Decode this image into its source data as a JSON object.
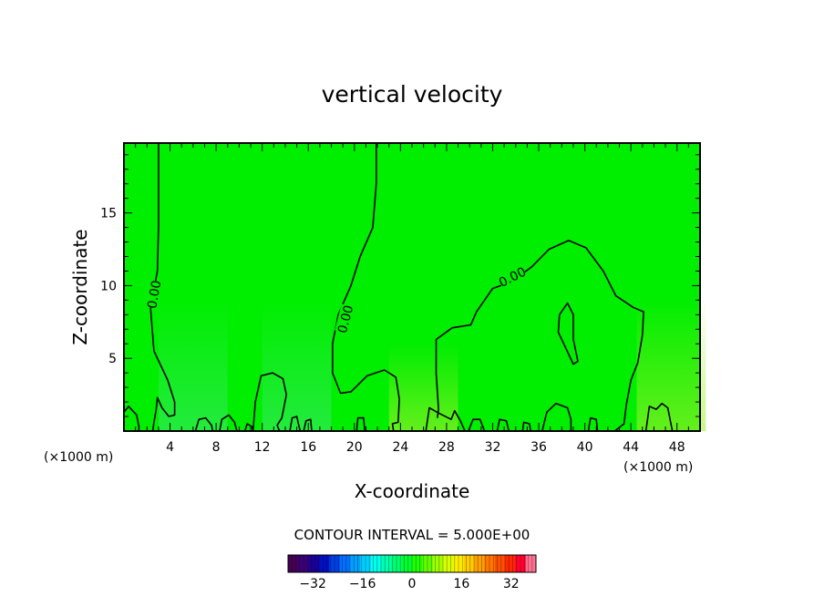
{
  "chart_data": {
    "type": "heatmap",
    "title": "vertical velocity",
    "xlabel": "X-coordinate",
    "ylabel": "Z-coordinate",
    "x_unit_left": "(×1000 m)",
    "x_unit_right": "(×1000 m)",
    "xlim": [
      0,
      50
    ],
    "ylim": [
      0,
      19.8
    ],
    "xticks": [
      4,
      8,
      12,
      16,
      20,
      24,
      28,
      32,
      36,
      40,
      44,
      48
    ],
    "yticks": [
      5,
      10,
      15
    ],
    "contour_label": "0.00",
    "contour_interval_text": "CONTOUR INTERVAL = 5.000E+00",
    "colorbar": {
      "range": [
        -40,
        40
      ],
      "ticks": [
        -32,
        -16,
        0,
        16,
        32
      ],
      "colors": [
        "#440055",
        "#3a0077",
        "#1a0099",
        "#0010c0",
        "#0040e0",
        "#0070ff",
        "#00a0ff",
        "#00d0ff",
        "#00ffee",
        "#00ffb0",
        "#00ff70",
        "#00ff30",
        "#20ff00",
        "#60ff00",
        "#a0ff00",
        "#d8ff00",
        "#ffee00",
        "#ffcc00",
        "#ffa000",
        "#ff7800",
        "#ff5000",
        "#ff2800",
        "#ff0030",
        "#ff7090"
      ]
    },
    "field_color": "#00ee00",
    "contours": [
      {
        "label": "0.00",
        "points": [
          [
            3,
            19.8
          ],
          [
            3,
            14
          ],
          [
            2.9,
            11
          ],
          [
            2.3,
            8.5
          ],
          [
            2.6,
            5.5
          ],
          [
            3.8,
            3.5
          ],
          [
            4.4,
            2
          ],
          [
            4.4,
            1.1
          ],
          [
            3.9,
            1
          ],
          [
            3.3,
            1.6
          ],
          [
            2.9,
            2.3
          ],
          [
            2.8,
            1.5
          ],
          [
            2.6,
            0.6
          ],
          [
            2.5,
            0
          ]
        ]
      },
      {
        "label": "0.00",
        "points": [
          [
            21.9,
            19.8
          ],
          [
            21.9,
            17
          ],
          [
            21.6,
            14
          ],
          [
            20.5,
            12
          ],
          [
            19.7,
            10
          ],
          [
            18.6,
            8
          ],
          [
            18.1,
            6
          ],
          [
            18.1,
            4
          ],
          [
            18.8,
            2.6
          ],
          [
            19.7,
            2.7
          ],
          [
            21.1,
            3.8
          ],
          [
            22.6,
            4.2
          ],
          [
            23.6,
            3.7
          ],
          [
            23.9,
            2.2
          ],
          [
            23.8,
            0.6
          ],
          [
            23.3,
            0.5
          ],
          [
            23.4,
            0
          ]
        ]
      },
      {
        "label": "0.00",
        "points": [
          [
            27.2,
            0.9
          ],
          [
            27.3,
            1.5
          ],
          [
            27.1,
            4
          ],
          [
            27.1,
            6.3
          ],
          [
            28.5,
            7.1
          ],
          [
            30.1,
            7.3
          ],
          [
            30.6,
            8.2
          ],
          [
            32,
            9.8
          ],
          [
            33.7,
            10.3
          ],
          [
            35.4,
            11.3
          ],
          [
            36.9,
            12.5
          ],
          [
            38.6,
            13.1
          ],
          [
            40.1,
            12.6
          ],
          [
            41.6,
            11
          ],
          [
            42.7,
            9.3
          ],
          [
            44.2,
            8.5
          ],
          [
            45.1,
            8.2
          ],
          [
            45,
            6.6
          ],
          [
            44.6,
            4.7
          ],
          [
            44,
            3.5
          ],
          [
            43.6,
            1.8
          ],
          [
            43.4,
            0.5
          ],
          [
            42.6,
            0
          ]
        ]
      },
      {
        "label": "",
        "points": [
          [
            37.8,
            8
          ],
          [
            38.5,
            8.8
          ],
          [
            39,
            8
          ],
          [
            39,
            6.3
          ],
          [
            39.4,
            4.8
          ],
          [
            39,
            4.6
          ],
          [
            37.7,
            6.8
          ],
          [
            37.8,
            8
          ]
        ]
      },
      {
        "label": "",
        "points": [
          [
            11.2,
            0
          ],
          [
            11.4,
            2
          ],
          [
            11.9,
            3.8
          ],
          [
            12.9,
            4
          ],
          [
            13.8,
            3.6
          ],
          [
            14.1,
            2.5
          ],
          [
            13.7,
            0.9
          ],
          [
            13.3,
            0.4
          ],
          [
            13.5,
            0
          ]
        ]
      },
      {
        "label": "",
        "points": [
          [
            0,
            1.3
          ],
          [
            0.4,
            1.7
          ],
          [
            1.1,
            1.1
          ],
          [
            1.3,
            0.3
          ],
          [
            1.3,
            0
          ]
        ]
      },
      {
        "label": "",
        "points": [
          [
            6.2,
            0
          ],
          [
            6.5,
            0.8
          ],
          [
            7.1,
            0.9
          ],
          [
            7.6,
            0.4
          ],
          [
            7.7,
            0
          ]
        ]
      },
      {
        "label": "",
        "points": [
          [
            8.3,
            0
          ],
          [
            8.5,
            0.8
          ],
          [
            9.1,
            1.1
          ],
          [
            9.6,
            0.6
          ],
          [
            9.8,
            0
          ]
        ]
      },
      {
        "label": "",
        "points": [
          [
            10.5,
            0
          ],
          [
            10.7,
            0.5
          ],
          [
            11.1,
            0.3
          ],
          [
            11.2,
            0
          ]
        ]
      },
      {
        "label": "",
        "points": [
          [
            14.4,
            0
          ],
          [
            14.6,
            0.9
          ],
          [
            15,
            1
          ],
          [
            15.2,
            0.3
          ],
          [
            15.3,
            0
          ]
        ]
      },
      {
        "label": "",
        "points": [
          [
            15.6,
            0
          ],
          [
            15.8,
            0.7
          ],
          [
            16.2,
            0.8
          ],
          [
            16.3,
            0
          ]
        ]
      },
      {
        "label": "",
        "points": [
          [
            20.2,
            0
          ],
          [
            20.3,
            0.9
          ],
          [
            20.8,
            0.9
          ],
          [
            20.9,
            0
          ]
        ]
      },
      {
        "label": "",
        "points": [
          [
            26.2,
            0
          ],
          [
            26.5,
            1.6
          ],
          [
            27.4,
            1.2
          ],
          [
            28.4,
            0.8
          ],
          [
            28.7,
            1.4
          ],
          [
            29.2,
            0.7
          ],
          [
            29.6,
            0
          ]
        ]
      },
      {
        "label": "",
        "points": [
          [
            29.9,
            0
          ],
          [
            30.3,
            0.8
          ],
          [
            30.9,
            0.8
          ],
          [
            31.3,
            0
          ]
        ]
      },
      {
        "label": "",
        "points": [
          [
            32.4,
            0
          ],
          [
            32.6,
            0.8
          ],
          [
            33.2,
            0.7
          ],
          [
            33.4,
            0
          ]
        ]
      },
      {
        "label": "",
        "points": [
          [
            34.6,
            0
          ],
          [
            34.7,
            0.6
          ],
          [
            35.2,
            0.5
          ],
          [
            35.3,
            0
          ]
        ]
      },
      {
        "label": "",
        "points": [
          [
            36.3,
            0
          ],
          [
            36.7,
            1.3
          ],
          [
            37.5,
            1.9
          ],
          [
            38.5,
            1.6
          ],
          [
            38.8,
            0.8
          ],
          [
            38.8,
            0
          ]
        ]
      },
      {
        "label": "",
        "points": [
          [
            40.3,
            0
          ],
          [
            40.5,
            0.9
          ],
          [
            41,
            0.8
          ],
          [
            41.1,
            0
          ]
        ]
      },
      {
        "label": "",
        "points": [
          [
            45.3,
            0
          ],
          [
            45.6,
            1.7
          ],
          [
            46.2,
            1.5
          ],
          [
            46.7,
            1.9
          ],
          [
            47.2,
            1.6
          ],
          [
            47.5,
            0.4
          ],
          [
            47.6,
            0
          ]
        ]
      }
    ]
  }
}
